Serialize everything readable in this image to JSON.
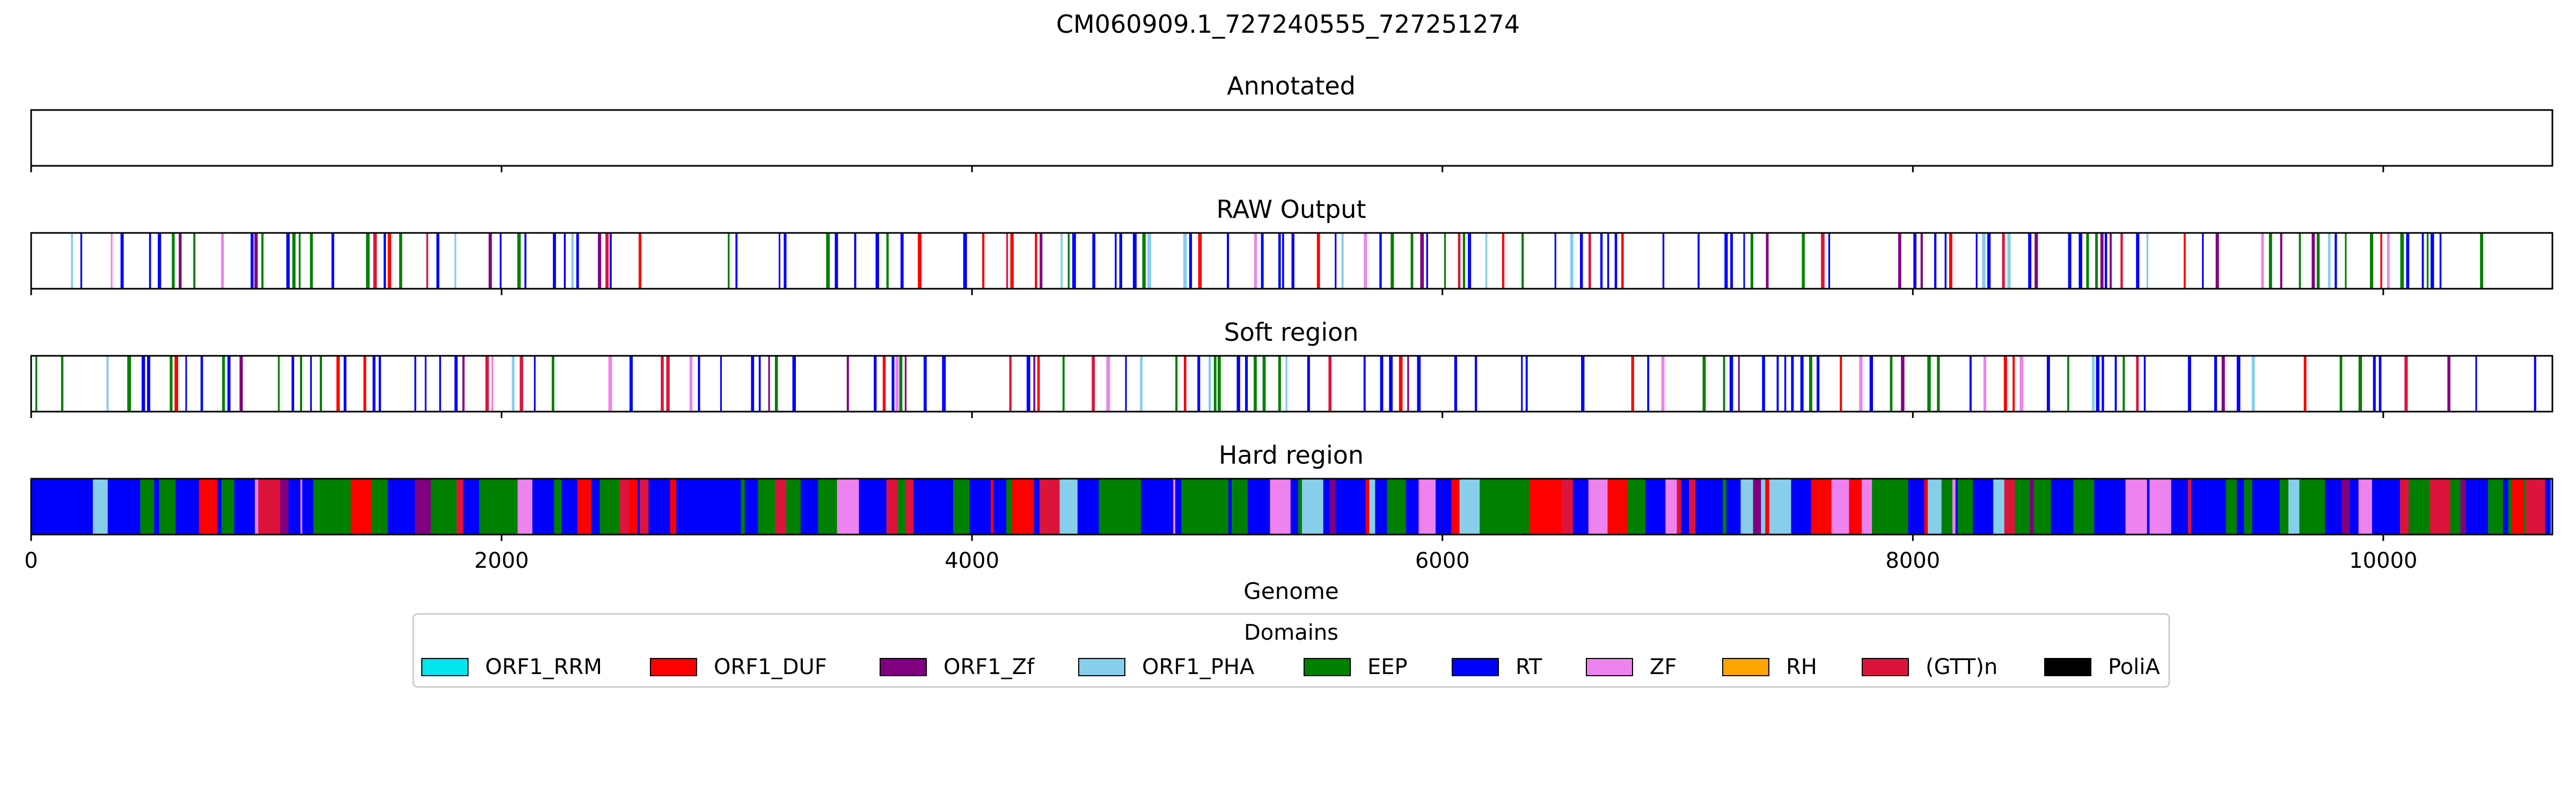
{
  "figure": {
    "title": "CM060909.1_727240555_727251274"
  },
  "chart_data": {
    "type": "track",
    "xlabel": "Genome",
    "xlim": [
      0,
      10719
    ],
    "xticks": [
      0,
      2000,
      4000,
      6000,
      8000,
      10000
    ],
    "xtick_labels": [
      "0",
      "2000",
      "4000",
      "6000",
      "8000",
      "10000"
    ],
    "panels": [
      {
        "id": "annotated",
        "title": "Annotated",
        "density": 0,
        "fill": false
      },
      {
        "id": "raw",
        "title": "RAW Output",
        "density": 0.45,
        "fill": false
      },
      {
        "id": "soft",
        "title": "Soft region",
        "density": 0.45,
        "fill": false
      },
      {
        "id": "hard",
        "title": "Hard region",
        "density": 1,
        "fill": true
      }
    ],
    "legend": {
      "title": "Domains",
      "placement": "bottom-center",
      "entries": [
        {
          "label": "ORF1_RRM",
          "color": "#00e5ee"
        },
        {
          "label": "ORF1_DUF",
          "color": "#ff0000"
        },
        {
          "label": "ORF1_Zf",
          "color": "#800080"
        },
        {
          "label": "ORF1_PHA",
          "color": "#87ceeb"
        },
        {
          "label": "EEP",
          "color": "#008000"
        },
        {
          "label": "RT",
          "color": "#0000ff"
        },
        {
          "label": "ZF",
          "color": "#ee82ee"
        },
        {
          "label": "RH",
          "color": "#ffa500"
        },
        {
          "label": "(GTT)n",
          "color": "#dc143c"
        },
        {
          "label": "PoliA",
          "color": "#000000"
        }
      ]
    }
  }
}
